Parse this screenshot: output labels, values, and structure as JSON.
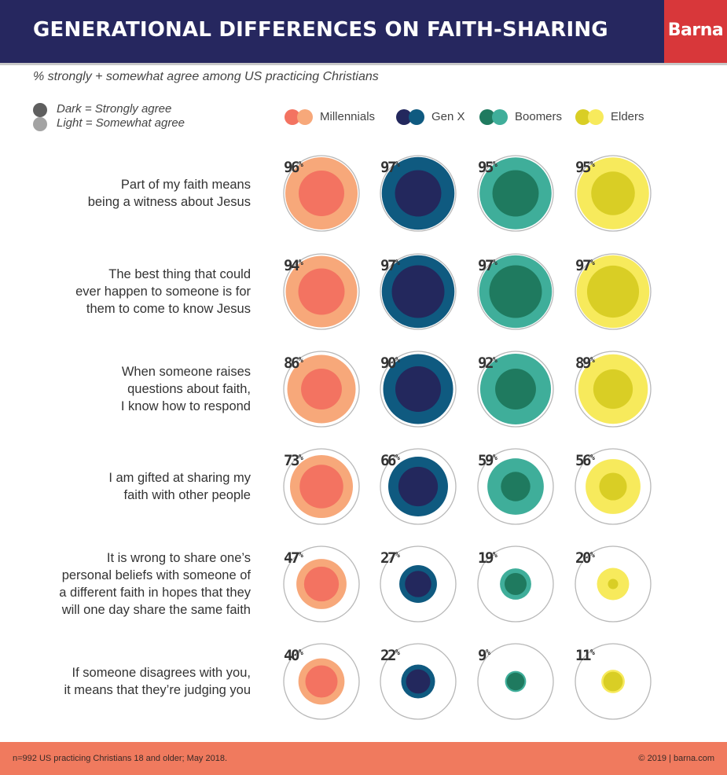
{
  "header": {
    "title": "GENERATIONAL DIFFERENCES ON FAITH-SHARING",
    "brand": "Barna",
    "subtitle": "% strongly + somewhat agree among US practicing Christians"
  },
  "shade_legend": [
    {
      "label": "Dark = Strongly agree",
      "color": "#5f5f5f"
    },
    {
      "label": "Light = Somewhat agree",
      "color": "#a3a3a3"
    }
  ],
  "colors": {
    "Millennials": {
      "dark": "#f37361",
      "light": "#f7a87a"
    },
    "Gen X": {
      "dark": "#23285d",
      "light": "#0f5a80"
    },
    "Boomers": {
      "dark": "#1f7a5f",
      "light": "#3fae9a"
    },
    "Elders": {
      "dark": "#d9ce25",
      "light": "#f7ea5c"
    },
    "ring": "#b8b8b8"
  },
  "chart_data": {
    "type": "bubble",
    "series": [
      {
        "name": "Millennials",
        "values": [
          96,
          94,
          86,
          73,
          47,
          40
        ]
      },
      {
        "name": "Gen X",
        "values": [
          97,
          97,
          90,
          66,
          27,
          22
        ]
      },
      {
        "name": "Boomers",
        "values": [
          95,
          97,
          92,
          59,
          19,
          9
        ]
      },
      {
        "name": "Elders",
        "values": [
          95,
          97,
          89,
          56,
          20,
          11
        ]
      }
    ],
    "categories": [
      {
        "lines": [
          "Part of my faith means",
          "being a witness about Jesus"
        ]
      },
      {
        "lines": [
          "The best thing that could",
          "ever happen to someone is for",
          "them to come to know Jesus"
        ]
      },
      {
        "lines": [
          "When someone raises",
          "questions about faith,",
          "I know how to respond"
        ]
      },
      {
        "lines": [
          "I am gifted at sharing my",
          "faith with other people"
        ]
      },
      {
        "lines": [
          "It is wrong to share one’s",
          "personal beliefs with someone of",
          "a different faith in hopes that they",
          "will one day share the same faith"
        ]
      },
      {
        "lines": [
          "If someone disagrees with you,",
          "it means that they’re judging you"
        ]
      }
    ],
    "strongly_agree_estimate": [
      [
        60,
        62,
        62,
        55
      ],
      [
        62,
        80,
        80,
        78
      ],
      [
        48,
        60,
        48,
        45
      ],
      [
        55,
        45,
        25,
        22
      ],
      [
        35,
        20,
        14,
        3
      ],
      [
        30,
        17,
        9,
        11
      ]
    ]
  },
  "footer": {
    "left": "n=992 US practicing Christians 18 and older; May 2018.",
    "right": "© 2019 | barna.com"
  }
}
